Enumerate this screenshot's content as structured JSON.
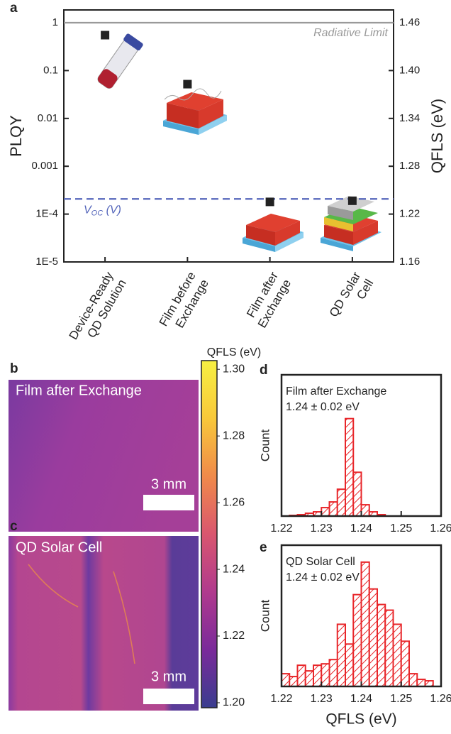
{
  "panel_labels": [
    "a",
    "b",
    "c",
    "d",
    "e"
  ],
  "images": [
    {
      "label": "Film after Exchange",
      "scale_bar": "3 mm"
    },
    {
      "label": "QD Solar Cell",
      "scale_bar": "3 mm"
    }
  ],
  "chart_data": [
    {
      "type": "scatter",
      "yscale": "log",
      "categories": [
        [
          "Device-Ready",
          "QD Solution"
        ],
        [
          "Film before",
          "Exchange"
        ],
        [
          "Film after",
          "Exchange"
        ],
        [
          "QD Solar",
          "Cell"
        ]
      ],
      "series": [
        {
          "name": "PLQY",
          "color": "#222222",
          "values": [
            0.55,
            0.052,
            0.00018,
            0.00019
          ]
        }
      ],
      "ylabel": "PLQY",
      "y2label": "QFLS (eV)",
      "ylim": [
        1e-05,
        1.85
      ],
      "yticks": [
        {
          "value": 1e-05,
          "label": "1E-5"
        },
        {
          "value": 0.0001,
          "label": "1E-4"
        },
        0.001,
        0.01,
        0.1,
        1
      ],
      "y2lim": [
        1.16,
        1.476
      ],
      "y2ticks": [
        1.16,
        1.22,
        1.28,
        1.34,
        {
          "value": 1.4,
          "label": "1.40"
        },
        1.46
      ],
      "reference_lines": [
        {
          "value": 1,
          "axis": "y",
          "color": "#9a9a9a",
          "label": "Radiative Limit"
        },
        {
          "value": 1.239,
          "axis": "y2",
          "color": "#5566bb",
          "dashed": true,
          "label": {
            "main": "V",
            "sub": "OC",
            "unit": " (V)"
          }
        }
      ]
    },
    {
      "type": "colorbar",
      "title": "QFLS (eV)",
      "colors": [
        "#3a3d8f",
        "#7a2a9a",
        "#b03a8e",
        "#d9566f",
        "#f08a4a",
        "#f8c83a",
        "#f7f042"
      ],
      "ylim": [
        1.1985,
        1.3026
      ],
      "yticks": [
        {
          "value": 1.2,
          "label": "1.20"
        },
        1.22,
        1.24,
        1.26,
        1.28,
        {
          "value": 1.3,
          "label": "1.30"
        }
      ]
    },
    {
      "type": "histogram",
      "title": "Film after Exchange",
      "annotation": "1.24 ± 0.02 eV",
      "ylabel": "Count",
      "color": "#e8262a",
      "bins": [
        1.22,
        1.222,
        1.224,
        1.226,
        1.228,
        1.23,
        1.232,
        1.234,
        1.236,
        1.238,
        1.24,
        1.242,
        1.244,
        1.246,
        1.248,
        1.25,
        1.252,
        1.254,
        1.256,
        1.258,
        1.26
      ],
      "values": [
        0,
        0.5,
        1,
        2,
        3,
        6,
        10,
        19,
        69,
        31,
        8,
        3,
        1,
        0,
        0,
        0,
        0,
        0,
        0,
        0
      ],
      "xlim": [
        1.22,
        1.26
      ],
      "xticks": [
        1.22,
        1.23,
        1.24,
        1.25,
        1.26
      ],
      "ylim": [
        0,
        100
      ]
    },
    {
      "type": "histogram",
      "title": "QD Solar Cell",
      "annotation": "1.24 ± 0.02 eV",
      "ylabel": "Count",
      "xlabel": "QFLS (eV)",
      "color": "#e8262a",
      "bins": [
        1.22,
        1.222,
        1.224,
        1.226,
        1.228,
        1.23,
        1.232,
        1.234,
        1.236,
        1.238,
        1.24,
        1.242,
        1.244,
        1.246,
        1.248,
        1.25,
        1.252,
        1.254,
        1.256,
        1.258,
        1.26
      ],
      "values": [
        9,
        7,
        15,
        11,
        15,
        16,
        19,
        44,
        30,
        65,
        88,
        69,
        58,
        54,
        44,
        32,
        9,
        5,
        4,
        0
      ],
      "xlim": [
        1.22,
        1.26
      ],
      "xticks": [
        1.22,
        1.23,
        1.24,
        1.25,
        1.26
      ],
      "ylim": [
        0,
        100
      ]
    }
  ]
}
